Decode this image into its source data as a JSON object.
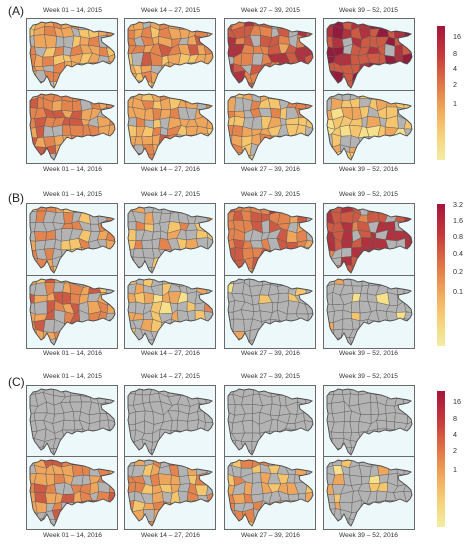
{
  "panels": [
    {
      "letter": "(A)",
      "top_labels": [
        "Week 01 – 14, 2015",
        "Week 14 – 27, 2015",
        "Week 27 – 39, 2015",
        "Week 39 – 52, 2015"
      ],
      "bottom_labels": [
        "Week 01 – 14, 2016",
        "Week 14 – 27, 2016",
        "Week 27 – 39, 2016",
        "Week 39 – 52, 2016"
      ],
      "legend_ticks": [
        "16",
        "8",
        "4",
        "2",
        "1"
      ],
      "map_intensity": [
        [
          0.35,
          0.42,
          0.6,
          0.8
        ],
        [
          0.45,
          0.38,
          0.3,
          0.2
        ]
      ],
      "map_gray_share": [
        [
          0.15,
          0.15,
          0.08,
          0.05
        ],
        [
          0.12,
          0.2,
          0.25,
          0.3
        ]
      ]
    },
    {
      "letter": "(B)",
      "top_labels": [
        "Week 01 – 14, 2015",
        "Week 14 – 27, 2015",
        "Week 27 – 39, 2015",
        "Week 39 – 52, 2015"
      ],
      "bottom_labels": [
        "Week 01 – 14, 2016",
        "Week 14 – 27, 2016",
        "Week 27 – 39, 2016",
        "Week 39 – 52, 2016"
      ],
      "legend_ticks": [
        "3.2",
        "1.6",
        "0.8",
        "0.4",
        "0.2",
        "0.1"
      ],
      "map_intensity": [
        [
          0.35,
          0.3,
          0.55,
          0.75
        ],
        [
          0.45,
          0.25,
          0.15,
          0.12
        ]
      ],
      "map_gray_share": [
        [
          0.45,
          0.55,
          0.3,
          0.25
        ],
        [
          0.35,
          0.6,
          0.85,
          0.9
        ]
      ]
    },
    {
      "letter": "(C)",
      "top_labels": [
        "Week 01 – 14, 2015",
        "Week 14 – 27, 2015",
        "Week 27 – 39, 2015",
        "Week 39 – 52, 2015"
      ],
      "bottom_labels": [
        "Week 01 – 14, 2016",
        "Week 14 – 27, 2016",
        "Week 27 – 39, 2016",
        "Week 39 – 52, 2016"
      ],
      "legend_ticks": [
        "16",
        "8",
        "4",
        "2",
        "1"
      ],
      "map_intensity": [
        [
          0.0,
          0.0,
          0.0,
          0.0
        ],
        [
          0.45,
          0.4,
          0.3,
          0.15
        ]
      ],
      "map_gray_share": [
        [
          1.0,
          1.0,
          1.0,
          1.0
        ],
        [
          0.25,
          0.35,
          0.55,
          0.85
        ]
      ]
    }
  ],
  "colors": {
    "gray_region": "#b3b3b3",
    "border": "#5b5b5b",
    "sea": "#edf8fb",
    "scale_high": "#a5153a",
    "scale_low": "#f3eda4"
  }
}
